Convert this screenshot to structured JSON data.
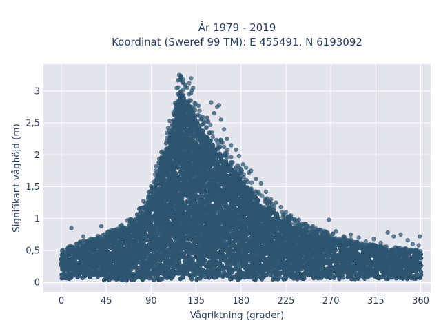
{
  "chart_data": {
    "type": "scatter",
    "title": [
      "År 1979 - 2019",
      "Koordinat (Sweref 99 TM): E 455491, N 6193092"
    ],
    "xlabel": "Vågriktning (grader)",
    "ylabel": "Signifikant våghöjd (m)",
    "xlim": [
      -18,
      370
    ],
    "ylim": [
      -0.15,
      3.42
    ],
    "x_ticks": [
      0,
      45,
      90,
      135,
      180,
      225,
      270,
      315,
      360
    ],
    "x_tick_labels": [
      "0",
      "45",
      "90",
      "135",
      "180",
      "225",
      "270",
      "315",
      "360"
    ],
    "y_ticks": [
      0,
      0.5,
      1,
      1.5,
      2,
      2.5,
      3
    ],
    "y_tick_labels": [
      "0",
      "0,5",
      "1",
      "1,5",
      "2",
      "2,5",
      "3"
    ],
    "grid": true,
    "marker_color": "#2e5570",
    "plot_bg": "#e5e5ee",
    "grid_color": "#ffffff",
    "envelope": {
      "description_points_x": [
        0,
        15,
        30,
        45,
        60,
        75,
        90,
        100,
        110,
        118,
        125,
        135,
        150,
        165,
        180,
        200,
        225,
        250,
        270,
        300,
        330,
        360
      ],
      "upper_y": [
        0.45,
        0.55,
        0.62,
        0.7,
        0.8,
        0.95,
        1.35,
        1.85,
        2.35,
        2.95,
        2.9,
        2.55,
        2.2,
        1.9,
        1.6,
        1.25,
        0.95,
        0.78,
        0.7,
        0.55,
        0.5,
        0.45
      ],
      "lower_y": [
        0.05,
        0.05,
        0.04,
        0.03,
        0.03,
        0.03,
        0.03,
        0.03,
        0.04,
        0.04,
        0.04,
        0.04,
        0.04,
        0.04,
        0.04,
        0.04,
        0.05,
        0.05,
        0.05,
        0.05,
        0.05,
        0.05
      ]
    },
    "outliers": [
      [
        10,
        0.85
      ],
      [
        22,
        0.72
      ],
      [
        33,
        0.68
      ],
      [
        40,
        0.88
      ],
      [
        52,
        0.82
      ],
      [
        66,
        0.97
      ],
      [
        70,
        0.92
      ],
      [
        78,
        1.15
      ],
      [
        84,
        1.25
      ],
      [
        88,
        1.32
      ],
      [
        92,
        1.45
      ],
      [
        95,
        1.82
      ],
      [
        98,
        1.7
      ],
      [
        102,
        1.95
      ],
      [
        106,
        2.1
      ],
      [
        108,
        2.25
      ],
      [
        111,
        2.45
      ],
      [
        113,
        2.62
      ],
      [
        115,
        2.8
      ],
      [
        117,
        2.95
      ],
      [
        118,
        3.25
      ],
      [
        120,
        3.22
      ],
      [
        122,
        3.18
      ],
      [
        124,
        3.1
      ],
      [
        126,
        3.05
      ],
      [
        128,
        2.95
      ],
      [
        130,
        3.2
      ],
      [
        132,
        3.05
      ],
      [
        134,
        2.7
      ],
      [
        137,
        2.62
      ],
      [
        140,
        2.55
      ],
      [
        143,
        2.5
      ],
      [
        146,
        2.58
      ],
      [
        150,
        2.82
      ],
      [
        153,
        2.65
      ],
      [
        156,
        2.75
      ],
      [
        158,
        2.78
      ],
      [
        160,
        2.55
      ],
      [
        163,
        2.4
      ],
      [
        166,
        2.25
      ],
      [
        170,
        2.15
      ],
      [
        175,
        2.08
      ],
      [
        178,
        1.98
      ],
      [
        182,
        1.85
      ],
      [
        185,
        1.8
      ],
      [
        188,
        1.72
      ],
      [
        190,
        1.75
      ],
      [
        195,
        1.62
      ],
      [
        200,
        1.55
      ],
      [
        205,
        1.42
      ],
      [
        210,
        1.3
      ],
      [
        215,
        1.25
      ],
      [
        220,
        1.18
      ],
      [
        225,
        1.1
      ],
      [
        230,
        1.05
      ],
      [
        238,
        0.98
      ],
      [
        245,
        0.92
      ],
      [
        252,
        0.88
      ],
      [
        260,
        0.82
      ],
      [
        268,
        0.98
      ],
      [
        275,
        0.8
      ],
      [
        283,
        0.72
      ],
      [
        290,
        0.75
      ],
      [
        298,
        0.7
      ],
      [
        305,
        0.64
      ],
      [
        313,
        0.68
      ],
      [
        320,
        0.62
      ],
      [
        327,
        0.78
      ],
      [
        333,
        0.72
      ],
      [
        340,
        0.75
      ],
      [
        347,
        0.66
      ],
      [
        352,
        0.6
      ],
      [
        358,
        0.58
      ],
      [
        359,
        0.72
      ]
    ]
  }
}
